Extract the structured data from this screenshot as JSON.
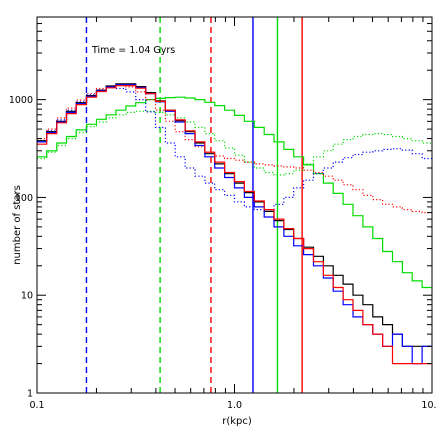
{
  "chart_data": {
    "type": "line",
    "title": "",
    "annotation": "Time = 1.04 Gyrs",
    "xlabel": "r(kpc)",
    "ylabel": "number of stars",
    "xscale": "log",
    "yscale": "log",
    "xlim": [
      0.1,
      10.0
    ],
    "ylim": [
      1,
      7000
    ],
    "xticks": [
      {
        "value": 0.1,
        "label": "0.1"
      },
      {
        "value": 1.0,
        "label": "1.0"
      },
      {
        "value": 10.0,
        "label": "10.0"
      }
    ],
    "yticks": [
      {
        "value": 1,
        "label": "1"
      },
      {
        "value": 10,
        "label": "10"
      },
      {
        "value": 100,
        "label": "100"
      },
      {
        "value": 1000,
        "label": "1000"
      }
    ],
    "grid": false,
    "legend": "none",
    "colors": {
      "blue": "#0000ff",
      "green": "#00dd00",
      "red": "#ff0000",
      "black": "#000000"
    },
    "step_series": [
      {
        "color": "green",
        "style": "solid",
        "edges": [
          0.1,
          0.112,
          0.126,
          0.141,
          0.158,
          0.178,
          0.2,
          0.224,
          0.251,
          0.282,
          0.316,
          0.355,
          0.398,
          0.447,
          0.501,
          0.562,
          0.631,
          0.708,
          0.794,
          0.891,
          1.0,
          1.122,
          1.259,
          1.413,
          1.585,
          1.778,
          1.995,
          2.239,
          2.512,
          2.818,
          3.162,
          3.548,
          3.981,
          4.467,
          5.012,
          5.623,
          6.31,
          7.079,
          7.943,
          8.913,
          10.0
        ],
        "values": [
          260,
          300,
          360,
          420,
          490,
          560,
          630,
          700,
          780,
          860,
          930,
          1000,
          1030,
          1050,
          1060,
          1040,
          1000,
          940,
          870,
          780,
          690,
          600,
          520,
          440,
          370,
          310,
          260,
          215,
          175,
          140,
          110,
          85,
          65,
          50,
          38,
          28,
          22,
          17,
          14,
          12
        ]
      },
      {
        "color": "green",
        "style": "dotted",
        "edges": [
          0.1,
          0.112,
          0.126,
          0.141,
          0.158,
          0.178,
          0.2,
          0.224,
          0.251,
          0.282,
          0.316,
          0.355,
          0.398,
          0.447,
          0.501,
          0.562,
          0.631,
          0.708,
          0.794,
          0.891,
          1.0,
          1.122,
          1.259,
          1.413,
          1.585,
          1.778,
          1.995,
          2.239,
          2.512,
          2.818,
          3.162,
          3.548,
          3.981,
          4.467,
          5.012,
          5.623,
          6.31,
          7.079,
          7.943,
          8.913,
          10.0
        ],
        "values": [
          250,
          290,
          340,
          400,
          460,
          530,
          590,
          650,
          700,
          740,
          760,
          760,
          740,
          700,
          650,
          590,
          520,
          450,
          380,
          320,
          270,
          230,
          200,
          180,
          170,
          175,
          190,
          220,
          260,
          300,
          350,
          390,
          420,
          440,
          450,
          440,
          420,
          400,
          380,
          360
        ]
      },
      {
        "color": "blue",
        "style": "dotted",
        "edges": [
          0.1,
          0.112,
          0.126,
          0.141,
          0.158,
          0.178,
          0.2,
          0.224,
          0.251,
          0.282,
          0.316,
          0.355,
          0.398,
          0.447,
          0.501,
          0.562,
          0.631,
          0.708,
          0.794,
          0.891,
          1.0,
          1.122,
          1.259,
          1.413,
          1.585,
          1.778,
          1.995,
          2.239,
          2.512,
          2.818,
          3.162,
          3.548,
          3.981,
          4.467,
          5.012,
          5.623,
          6.31,
          7.079,
          7.943,
          8.913,
          10.0
        ],
        "values": [
          380,
          480,
          620,
          780,
          950,
          1120,
          1260,
          1320,
          1300,
          1200,
          1000,
          750,
          520,
          360,
          260,
          200,
          165,
          140,
          120,
          105,
          90,
          80,
          75,
          75,
          85,
          100,
          125,
          150,
          175,
          200,
          230,
          255,
          275,
          290,
          300,
          310,
          315,
          305,
          280,
          250
        ]
      },
      {
        "color": "red",
        "style": "dotted",
        "edges": [
          0.1,
          0.112,
          0.126,
          0.141,
          0.158,
          0.178,
          0.2,
          0.224,
          0.251,
          0.282,
          0.316,
          0.355,
          0.398,
          0.447,
          0.501,
          0.562,
          0.631,
          0.708,
          0.794,
          0.891,
          1.0,
          1.122,
          1.259,
          1.413,
          1.585,
          1.778,
          1.995,
          2.239,
          2.512,
          2.818,
          3.162,
          3.548,
          3.981,
          4.467,
          5.012,
          5.623,
          6.31,
          7.079,
          7.943,
          8.913,
          10.0
        ],
        "values": [
          400,
          500,
          650,
          820,
          990,
          1150,
          1300,
          1380,
          1400,
          1350,
          1200,
          1000,
          780,
          600,
          470,
          390,
          330,
          290,
          265,
          250,
          240,
          230,
          220,
          215,
          210,
          205,
          200,
          190,
          180,
          165,
          150,
          135,
          120,
          105,
          95,
          85,
          80,
          75,
          72,
          70
        ]
      },
      {
        "color": "black",
        "style": "solid",
        "edges": [
          0.1,
          0.112,
          0.126,
          0.141,
          0.158,
          0.178,
          0.2,
          0.224,
          0.251,
          0.282,
          0.316,
          0.355,
          0.398,
          0.447,
          0.501,
          0.562,
          0.631,
          0.708,
          0.794,
          0.891,
          1.0,
          1.122,
          1.259,
          1.413,
          1.585,
          1.778,
          1.995,
          2.239,
          2.512,
          2.818,
          3.162,
          3.548,
          3.981,
          4.467,
          5.012,
          5.623,
          6.31,
          7.079,
          7.943,
          8.913,
          10.0
        ],
        "values": [
          380,
          470,
          600,
          760,
          930,
          1100,
          1250,
          1380,
          1450,
          1450,
          1360,
          1180,
          970,
          780,
          610,
          470,
          360,
          280,
          220,
          175,
          140,
          112,
          90,
          72,
          58,
          47,
          38,
          31,
          25,
          20,
          16,
          13,
          10,
          8,
          6,
          5,
          4,
          3,
          3,
          3
        ]
      },
      {
        "color": "blue",
        "style": "solid",
        "edges": [
          0.1,
          0.112,
          0.126,
          0.141,
          0.158,
          0.178,
          0.2,
          0.224,
          0.251,
          0.282,
          0.316,
          0.355,
          0.398,
          0.447,
          0.501,
          0.562,
          0.631,
          0.708,
          0.794,
          0.891,
          1.0,
          1.122,
          1.259,
          1.413,
          1.585,
          1.778,
          1.995,
          2.239,
          2.512,
          2.818,
          3.162,
          3.548,
          3.981,
          4.467,
          5.012,
          5.623,
          6.31,
          7.079,
          7.943,
          8.913,
          10.0
        ],
        "values": [
          370,
          460,
          590,
          740,
          910,
          1080,
          1230,
          1350,
          1420,
          1420,
          1330,
          1150,
          950,
          760,
          590,
          450,
          340,
          260,
          200,
          160,
          125,
          100,
          80,
          63,
          50,
          40,
          32,
          26,
          20,
          15,
          11,
          8,
          6,
          5,
          4,
          3,
          4,
          3,
          2,
          3
        ]
      },
      {
        "color": "red",
        "style": "solid",
        "edges": [
          0.1,
          0.112,
          0.126,
          0.141,
          0.158,
          0.178,
          0.2,
          0.224,
          0.251,
          0.282,
          0.316,
          0.355,
          0.398,
          0.447,
          0.501,
          0.562,
          0.631,
          0.708,
          0.794,
          0.891,
          1.0,
          1.122,
          1.259,
          1.413,
          1.585,
          1.778,
          1.995,
          2.239,
          2.512,
          2.818,
          3.162,
          3.548,
          3.981,
          4.467,
          5.012,
          5.623,
          6.31,
          7.079,
          7.943,
          8.913,
          10.0
        ],
        "values": [
          350,
          450,
          580,
          720,
          890,
          1060,
          1210,
          1320,
          1390,
          1390,
          1310,
          1150,
          960,
          780,
          620,
          480,
          370,
          290,
          230,
          180,
          145,
          115,
          92,
          75,
          60,
          48,
          38,
          30,
          22,
          16,
          12,
          9,
          7,
          5,
          4,
          3,
          2,
          2,
          2,
          2
        ]
      }
    ],
    "vertical_lines": [
      {
        "x": 0.178,
        "color": "blue",
        "style": "dashed"
      },
      {
        "x": 0.42,
        "color": "green",
        "style": "dashed"
      },
      {
        "x": 0.76,
        "color": "red",
        "style": "dashed"
      },
      {
        "x": 1.24,
        "color": "blue",
        "style": "solid"
      },
      {
        "x": 1.65,
        "color": "green",
        "style": "solid"
      },
      {
        "x": 2.2,
        "color": "red",
        "style": "solid"
      }
    ]
  }
}
